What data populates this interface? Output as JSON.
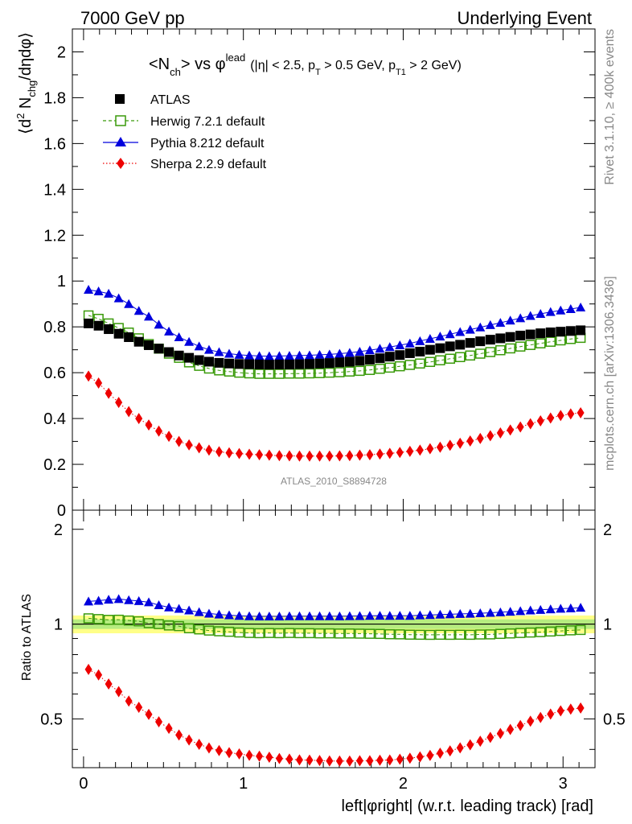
{
  "header": {
    "left": "7000 GeV pp",
    "right": "Underlying Event"
  },
  "side": {
    "rivet": "Rivet 3.1.10, ≥ 400k events",
    "mcplots": "mcplots.cern.ch [arXiv:1306.3436]"
  },
  "watermark": "ATLAS_2010_S8894728",
  "plot_title": {
    "main": "<N",
    "main_sub": "ch",
    "main_rest": "> vs φ",
    "main_sup": "lead",
    "cond1": "(|η| < 2.5, p",
    "cond1_sub": "T",
    "cond2": " > 0.5 GeV, p",
    "cond2_sub": "T1",
    "cond3": " > 2 GeV)"
  },
  "ylabel_main": {
    "part1": "⟨d",
    "sup": "2",
    "part2": " N",
    "sub": "chg",
    "part3": "/dηdφ⟩"
  },
  "ylabel_ratio": "Ratio to ATLAS",
  "xlabel": "left|φright| (w.r.t. leading track) [rad]",
  "colors": {
    "atlas": "#000000",
    "herwig": "#3a9a0a",
    "pythia": "#0000dd",
    "sherpa": "#ee0000",
    "band_inner": "#b6ec7f",
    "band_outer": "#ffff88"
  },
  "chart_data": {
    "type": "scatter",
    "x": [
      0.031,
      0.094,
      0.157,
      0.22,
      0.283,
      0.346,
      0.408,
      0.471,
      0.534,
      0.597,
      0.66,
      0.723,
      0.785,
      0.848,
      0.911,
      0.974,
      1.037,
      1.1,
      1.162,
      1.225,
      1.288,
      1.351,
      1.414,
      1.477,
      1.539,
      1.602,
      1.665,
      1.728,
      1.791,
      1.854,
      1.916,
      1.979,
      2.042,
      2.105,
      2.168,
      2.231,
      2.293,
      2.356,
      2.419,
      2.482,
      2.545,
      2.608,
      2.67,
      2.733,
      2.796,
      2.859,
      2.922,
      2.985,
      3.048,
      3.11
    ],
    "series": [
      {
        "name": "ATLAS",
        "marker": "square",
        "values": [
          0.815,
          0.805,
          0.79,
          0.77,
          0.755,
          0.735,
          0.72,
          0.705,
          0.69,
          0.675,
          0.665,
          0.655,
          0.648,
          0.643,
          0.64,
          0.638,
          0.637,
          0.636,
          0.635,
          0.636,
          0.636,
          0.637,
          0.638,
          0.64,
          0.642,
          0.645,
          0.648,
          0.652,
          0.657,
          0.663,
          0.67,
          0.677,
          0.685,
          0.692,
          0.7,
          0.707,
          0.715,
          0.722,
          0.73,
          0.737,
          0.744,
          0.75,
          0.756,
          0.762,
          0.767,
          0.772,
          0.776,
          0.779,
          0.782,
          0.785
        ]
      },
      {
        "name": "Herwig 7.2.1 default",
        "marker": "open-square",
        "values": [
          0.85,
          0.835,
          0.815,
          0.795,
          0.775,
          0.75,
          0.725,
          0.705,
          0.683,
          0.665,
          0.645,
          0.63,
          0.618,
          0.61,
          0.605,
          0.6,
          0.597,
          0.595,
          0.595,
          0.595,
          0.596,
          0.596,
          0.597,
          0.598,
          0.6,
          0.602,
          0.605,
          0.608,
          0.612,
          0.617,
          0.622,
          0.628,
          0.634,
          0.64,
          0.647,
          0.654,
          0.661,
          0.668,
          0.675,
          0.683,
          0.69,
          0.698,
          0.706,
          0.714,
          0.721,
          0.728,
          0.735,
          0.741,
          0.747,
          0.752
        ]
      },
      {
        "name": "Pythia 8.212 default",
        "marker": "triangle",
        "values": [
          0.962,
          0.955,
          0.945,
          0.925,
          0.9,
          0.87,
          0.845,
          0.81,
          0.78,
          0.755,
          0.735,
          0.715,
          0.7,
          0.69,
          0.683,
          0.678,
          0.675,
          0.673,
          0.672,
          0.673,
          0.674,
          0.675,
          0.676,
          0.678,
          0.68,
          0.683,
          0.687,
          0.692,
          0.698,
          0.705,
          0.712,
          0.72,
          0.728,
          0.738,
          0.748,
          0.758,
          0.768,
          0.778,
          0.788,
          0.798,
          0.808,
          0.818,
          0.828,
          0.838,
          0.848,
          0.857,
          0.865,
          0.872,
          0.878,
          0.885
        ]
      },
      {
        "name": "Sherpa 2.2.9 default",
        "marker": "diamond",
        "values": [
          0.585,
          0.555,
          0.51,
          0.47,
          0.43,
          0.4,
          0.372,
          0.345,
          0.322,
          0.3,
          0.285,
          0.272,
          0.262,
          0.255,
          0.25,
          0.247,
          0.244,
          0.242,
          0.24,
          0.238,
          0.237,
          0.236,
          0.236,
          0.236,
          0.236,
          0.237,
          0.238,
          0.24,
          0.242,
          0.245,
          0.248,
          0.252,
          0.257,
          0.262,
          0.268,
          0.275,
          0.283,
          0.292,
          0.302,
          0.313,
          0.325,
          0.337,
          0.35,
          0.363,
          0.377,
          0.39,
          0.402,
          0.413,
          0.42,
          0.425
        ]
      }
    ],
    "xlim": [
      -0.07,
      3.2
    ],
    "ylim": [
      0,
      2.1
    ],
    "ylim_ratio": [
      0.35,
      2.3
    ],
    "xticks": [
      "0",
      "1",
      "2",
      "3"
    ],
    "yticks": [
      "0",
      "0.2",
      "0.4",
      "0.6",
      "0.8",
      "1",
      "1.2",
      "1.4",
      "1.6",
      "1.8",
      "2"
    ],
    "yticks_ratio": [
      "0.5",
      "1",
      "2"
    ],
    "legend": "top-left"
  }
}
